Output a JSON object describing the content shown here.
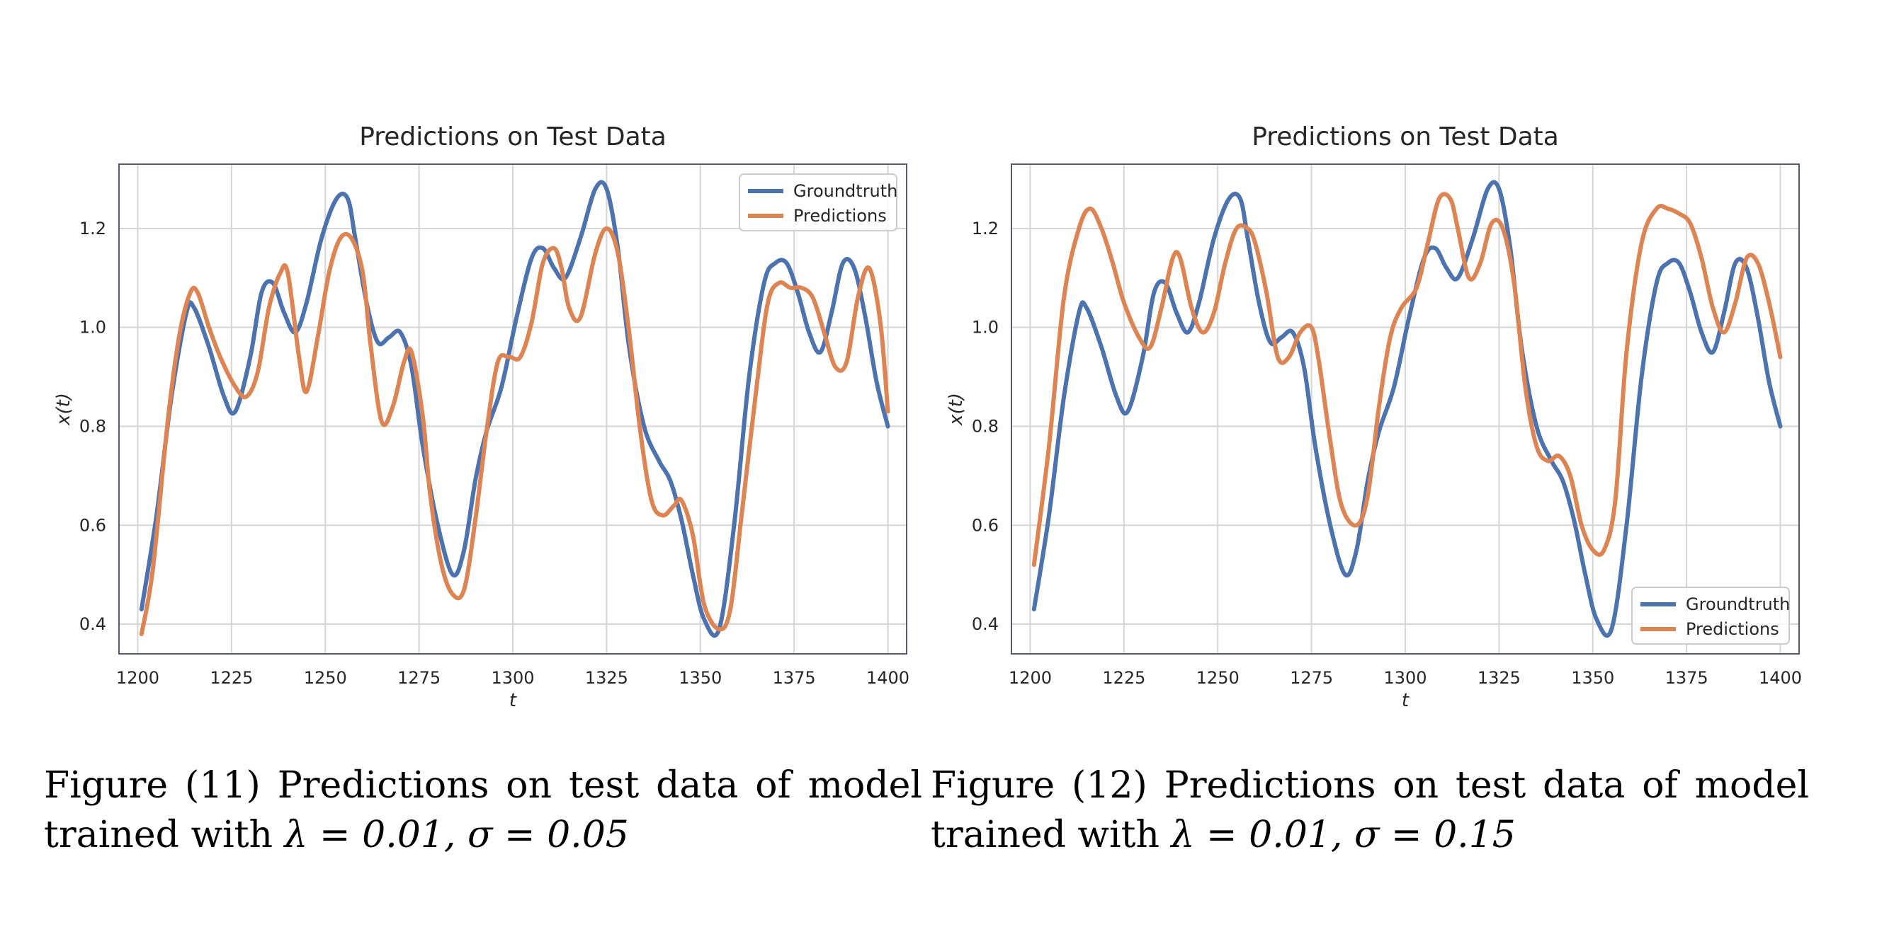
{
  "colors": {
    "groundtruth": "#4c72b0",
    "predictions": "#dd8452",
    "grid": "#d5d5d5",
    "frame": "#555b6e"
  },
  "captions": [
    {
      "tag": "Figure (11)",
      "text": "Predictions on test data of model trained with",
      "math": "λ = 0.01, σ = 0.05"
    },
    {
      "tag": "Figure (12)",
      "text": "Predictions on test data of model trained with",
      "math": "λ = 0.01, σ = 0.15"
    }
  ],
  "chart_data": [
    {
      "type": "line",
      "title": "Predictions on Test Data",
      "xlabel": "t",
      "ylabel": "x(t)",
      "xlim": [
        1195,
        1405
      ],
      "ylim": [
        0.34,
        1.33
      ],
      "xticks": [
        1200,
        1225,
        1250,
        1275,
        1300,
        1325,
        1350,
        1375,
        1400
      ],
      "yticks": [
        0.4,
        0.6,
        0.8,
        1.0,
        1.2
      ],
      "grid": true,
      "legend_position": "top-right",
      "series": [
        {
          "name": "Groundtruth",
          "x": [
            1201,
            1205,
            1209,
            1213,
            1215,
            1219,
            1223,
            1226,
            1230,
            1233,
            1236,
            1239,
            1242,
            1245,
            1249,
            1253,
            1256,
            1258,
            1261,
            1264,
            1267,
            1270,
            1273,
            1276,
            1280,
            1284,
            1287,
            1290,
            1293,
            1297,
            1301,
            1305,
            1308,
            1311,
            1314,
            1318,
            1322,
            1325,
            1328,
            1331,
            1335,
            1339,
            1342,
            1345,
            1348,
            1351,
            1355,
            1359,
            1363,
            1367,
            1370,
            1373,
            1376,
            1379,
            1382,
            1385,
            1388,
            1391,
            1394,
            1397,
            1400
          ],
          "y": [
            0.43,
            0.62,
            0.86,
            1.03,
            1.04,
            0.96,
            0.86,
            0.83,
            0.94,
            1.07,
            1.09,
            1.03,
            0.99,
            1.05,
            1.18,
            1.26,
            1.26,
            1.18,
            1.05,
            0.97,
            0.98,
            0.99,
            0.92,
            0.76,
            0.6,
            0.5,
            0.55,
            0.69,
            0.79,
            0.88,
            1.02,
            1.14,
            1.16,
            1.12,
            1.1,
            1.18,
            1.28,
            1.28,
            1.16,
            0.96,
            0.8,
            0.73,
            0.69,
            0.61,
            0.5,
            0.41,
            0.39,
            0.6,
            0.9,
            1.09,
            1.13,
            1.13,
            1.07,
            0.99,
            0.95,
            1.03,
            1.13,
            1.12,
            1.02,
            0.89,
            0.8
          ]
        },
        {
          "name": "Predictions",
          "x": [
            1201,
            1204,
            1208,
            1211,
            1214,
            1216,
            1219,
            1222,
            1226,
            1229,
            1232,
            1235,
            1238,
            1240,
            1243,
            1245,
            1248,
            1251,
            1254,
            1257,
            1260,
            1262,
            1265,
            1268,
            1271,
            1273,
            1276,
            1278,
            1281,
            1284,
            1287,
            1290,
            1293,
            1296,
            1299,
            1302,
            1305,
            1308,
            1311,
            1313,
            1315,
            1318,
            1322,
            1325,
            1328,
            1331,
            1334,
            1337,
            1340,
            1343,
            1345,
            1348,
            1351,
            1355,
            1358,
            1361,
            1365,
            1368,
            1371,
            1374,
            1377,
            1380,
            1383,
            1386,
            1389,
            1392,
            1395,
            1398,
            1400
          ],
          "y": [
            0.38,
            0.51,
            0.81,
            0.98,
            1.07,
            1.07,
            1.0,
            0.94,
            0.88,
            0.86,
            0.91,
            1.04,
            1.11,
            1.11,
            0.94,
            0.87,
            0.98,
            1.11,
            1.18,
            1.18,
            1.11,
            0.97,
            0.81,
            0.84,
            0.93,
            0.95,
            0.82,
            0.66,
            0.52,
            0.46,
            0.47,
            0.61,
            0.79,
            0.93,
            0.94,
            0.94,
            1.01,
            1.13,
            1.16,
            1.12,
            1.04,
            1.02,
            1.15,
            1.2,
            1.15,
            0.99,
            0.79,
            0.65,
            0.62,
            0.64,
            0.65,
            0.58,
            0.44,
            0.39,
            0.43,
            0.62,
            0.88,
            1.05,
            1.09,
            1.08,
            1.08,
            1.06,
            0.99,
            0.92,
            0.93,
            1.06,
            1.12,
            1.01,
            0.83
          ]
        }
      ]
    },
    {
      "type": "line",
      "title": "Predictions on Test Data",
      "xlabel": "t",
      "ylabel": "x(t)",
      "xlim": [
        1195,
        1405
      ],
      "ylim": [
        0.34,
        1.33
      ],
      "xticks": [
        1200,
        1225,
        1250,
        1275,
        1300,
        1325,
        1350,
        1375,
        1400
      ],
      "yticks": [
        0.4,
        0.6,
        0.8,
        1.0,
        1.2
      ],
      "grid": true,
      "legend_position": "bottom-right",
      "series": [
        {
          "name": "Groundtruth",
          "x": [
            1201,
            1205,
            1209,
            1213,
            1215,
            1219,
            1223,
            1226,
            1230,
            1233,
            1236,
            1239,
            1242,
            1245,
            1249,
            1253,
            1256,
            1258,
            1261,
            1264,
            1267,
            1270,
            1273,
            1276,
            1280,
            1284,
            1287,
            1290,
            1293,
            1297,
            1301,
            1305,
            1308,
            1311,
            1314,
            1318,
            1322,
            1325,
            1328,
            1331,
            1335,
            1339,
            1342,
            1345,
            1348,
            1351,
            1355,
            1359,
            1363,
            1367,
            1370,
            1373,
            1376,
            1379,
            1382,
            1385,
            1388,
            1391,
            1394,
            1397,
            1400
          ],
          "y": [
            0.43,
            0.62,
            0.86,
            1.03,
            1.04,
            0.96,
            0.86,
            0.83,
            0.94,
            1.07,
            1.09,
            1.03,
            0.99,
            1.05,
            1.18,
            1.26,
            1.26,
            1.18,
            1.05,
            0.97,
            0.98,
            0.99,
            0.92,
            0.76,
            0.6,
            0.5,
            0.55,
            0.69,
            0.79,
            0.88,
            1.02,
            1.14,
            1.16,
            1.12,
            1.1,
            1.18,
            1.28,
            1.28,
            1.16,
            0.96,
            0.8,
            0.73,
            0.69,
            0.61,
            0.5,
            0.41,
            0.39,
            0.6,
            0.9,
            1.09,
            1.13,
            1.13,
            1.07,
            0.99,
            0.95,
            1.03,
            1.13,
            1.12,
            1.02,
            0.89,
            0.8
          ]
        },
        {
          "name": "Predictions",
          "x": [
            1201,
            1205,
            1209,
            1213,
            1216,
            1219,
            1222,
            1225,
            1229,
            1232,
            1235,
            1238,
            1240,
            1243,
            1246,
            1249,
            1252,
            1255,
            1258,
            1260,
            1263,
            1266,
            1269,
            1272,
            1275,
            1277,
            1280,
            1283,
            1287,
            1290,
            1293,
            1296,
            1299,
            1303,
            1306,
            1309,
            1312,
            1314,
            1317,
            1320,
            1323,
            1326,
            1329,
            1332,
            1335,
            1338,
            1341,
            1344,
            1347,
            1350,
            1353,
            1356,
            1359,
            1363,
            1367,
            1370,
            1373,
            1376,
            1379,
            1382,
            1385,
            1388,
            1391,
            1394,
            1397,
            1400
          ],
          "y": [
            0.52,
            0.76,
            1.06,
            1.2,
            1.24,
            1.2,
            1.13,
            1.05,
            0.98,
            0.96,
            1.04,
            1.14,
            1.14,
            1.04,
            0.99,
            1.03,
            1.13,
            1.2,
            1.2,
            1.17,
            1.07,
            0.94,
            0.94,
            0.99,
            1.0,
            0.93,
            0.77,
            0.64,
            0.6,
            0.66,
            0.84,
            0.98,
            1.04,
            1.08,
            1.17,
            1.26,
            1.26,
            1.2,
            1.1,
            1.13,
            1.21,
            1.2,
            1.09,
            0.88,
            0.76,
            0.73,
            0.74,
            0.7,
            0.6,
            0.55,
            0.55,
            0.65,
            0.95,
            1.17,
            1.24,
            1.24,
            1.23,
            1.21,
            1.14,
            1.04,
            0.99,
            1.05,
            1.14,
            1.13,
            1.05,
            0.94
          ]
        }
      ]
    }
  ]
}
